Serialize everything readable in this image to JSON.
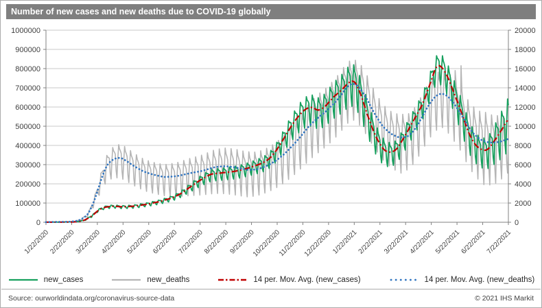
{
  "window": {
    "source": "Source: ourworldindata.org/coronavirus-source-data",
    "copyright": "© 2021 IHS Markit"
  },
  "chart_data": {
    "type": "line",
    "title": "Number of new cases and new deaths due to COVID-19 globally",
    "x_axis": {
      "total_days": 547,
      "tick_labels": [
        "1/22/2020",
        "2/22/2020",
        "3/22/2020",
        "4/22/2020",
        "5/22/2020",
        "6/22/2020",
        "7/22/2020",
        "8/22/2020",
        "9/22/2020",
        "10/22/2020",
        "11/22/2020",
        "12/22/2020",
        "1/22/2021",
        "2/22/2021",
        "3/22/2021",
        "4/22/2021",
        "5/22/2021",
        "6/22/2021",
        "7/22/2021"
      ]
    },
    "left_axis": {
      "min": 0,
      "max": 1000000,
      "step": 100000,
      "tick_labels": [
        "0",
        "100000",
        "200000",
        "300000",
        "400000",
        "500000",
        "600000",
        "700000",
        "800000",
        "900000",
        "1000000"
      ]
    },
    "right_axis": {
      "min": 0,
      "max": 20000,
      "step": 2000,
      "tick_labels": [
        "0",
        "2000",
        "4000",
        "6000",
        "8000",
        "10000",
        "12000",
        "14000",
        "16000",
        "18000",
        "20000"
      ]
    },
    "legend": [
      {
        "label": "new_cases",
        "color": "#17a05e",
        "style": "solid"
      },
      {
        "label": "new_deaths",
        "color": "#b5b5b5",
        "style": "solid"
      },
      {
        "label": "14 per. Mov. Avg. (new_cases)",
        "color": "#c00000",
        "style": "dash-dot"
      },
      {
        "label": "14 per. Mov. Avg. (new_deaths)",
        "color": "#2f74c0",
        "style": "dotted"
      }
    ],
    "weekly_period_days": 7,
    "series": {
      "ma_new_cases": {
        "axis": "left",
        "color": "#c00000",
        "style": "dash-dot",
        "width": 2.2,
        "anchors": [
          [
            0,
            400
          ],
          [
            20,
            600
          ],
          [
            35,
            1800
          ],
          [
            45,
            9000
          ],
          [
            55,
            34000
          ],
          [
            62,
            64000
          ],
          [
            70,
            79000
          ],
          [
            80,
            84000
          ],
          [
            91,
            80000
          ],
          [
            105,
            84000
          ],
          [
            120,
            94000
          ],
          [
            135,
            108000
          ],
          [
            150,
            128000
          ],
          [
            160,
            150000
          ],
          [
            170,
            182000
          ],
          [
            182,
            218000
          ],
          [
            195,
            251000
          ],
          [
            210,
            258000
          ],
          [
            225,
            266000
          ],
          [
            240,
            283000
          ],
          [
            255,
            306000
          ],
          [
            262,
            322000
          ],
          [
            270,
            357000
          ],
          [
            280,
            426000
          ],
          [
            290,
            500000
          ],
          [
            300,
            561000
          ],
          [
            308,
            593000
          ],
          [
            315,
            601000
          ],
          [
            322,
            579000
          ],
          [
            330,
            601000
          ],
          [
            340,
            652000
          ],
          [
            350,
            689000
          ],
          [
            358,
            729000
          ],
          [
            365,
            739000
          ],
          [
            372,
            673000
          ],
          [
            380,
            561000
          ],
          [
            390,
            445000
          ],
          [
            400,
            373000
          ],
          [
            408,
            362000
          ],
          [
            415,
            379000
          ],
          [
            425,
            452000
          ],
          [
            435,
            531000
          ],
          [
            445,
            609000
          ],
          [
            455,
            727000
          ],
          [
            462,
            821000
          ],
          [
            468,
            812000
          ],
          [
            475,
            761000
          ],
          [
            483,
            669000
          ],
          [
            490,
            591000
          ],
          [
            500,
            463000
          ],
          [
            508,
            401000
          ],
          [
            515,
            377000
          ],
          [
            522,
            373000
          ],
          [
            530,
            421000
          ],
          [
            538,
            473000
          ],
          [
            547,
            541000
          ]
        ]
      },
      "ma_new_deaths": {
        "axis": "right",
        "color": "#2f74c0",
        "style": "dotted",
        "width": 2.7,
        "anchors": [
          [
            0,
            15
          ],
          [
            30,
            60
          ],
          [
            40,
            200
          ],
          [
            50,
            800
          ],
          [
            58,
            2400
          ],
          [
            65,
            4400
          ],
          [
            72,
            6000
          ],
          [
            80,
            6600
          ],
          [
            88,
            6750
          ],
          [
            95,
            6400
          ],
          [
            105,
            5800
          ],
          [
            115,
            5300
          ],
          [
            125,
            5000
          ],
          [
            140,
            4700
          ],
          [
            155,
            4800
          ],
          [
            170,
            5100
          ],
          [
            185,
            5350
          ],
          [
            200,
            5750
          ],
          [
            212,
            5850
          ],
          [
            225,
            5700
          ],
          [
            238,
            5450
          ],
          [
            250,
            5500
          ],
          [
            262,
            5900
          ],
          [
            272,
            6400
          ],
          [
            282,
            7100
          ],
          [
            292,
            8000
          ],
          [
            302,
            9000
          ],
          [
            312,
            10100
          ],
          [
            322,
            10900
          ],
          [
            332,
            11600
          ],
          [
            340,
            12300
          ],
          [
            348,
            13100
          ],
          [
            356,
            14100
          ],
          [
            363,
            14500
          ],
          [
            370,
            14150
          ],
          [
            378,
            13100
          ],
          [
            388,
            11400
          ],
          [
            398,
            10000
          ],
          [
            408,
            9200
          ],
          [
            418,
            8800
          ],
          [
            428,
            8900
          ],
          [
            436,
            9600
          ],
          [
            444,
            10800
          ],
          [
            452,
            12100
          ],
          [
            460,
            13100
          ],
          [
            468,
            13450
          ],
          [
            476,
            13100
          ],
          [
            484,
            12200
          ],
          [
            492,
            11100
          ],
          [
            500,
            9900
          ],
          [
            508,
            9000
          ],
          [
            516,
            8500
          ],
          [
            524,
            8300
          ],
          [
            532,
            8300
          ],
          [
            540,
            8450
          ],
          [
            547,
            8700
          ]
        ]
      },
      "new_cases": {
        "axis": "left",
        "color": "#17a05e",
        "style": "solid",
        "width": 1.8,
        "base": "ma_new_cases",
        "weekly_phase": 0.6,
        "amplitude_anchors": [
          [
            0,
            0.5
          ],
          [
            40,
            0.35
          ],
          [
            60,
            0.12
          ],
          [
            90,
            0.12
          ],
          [
            150,
            0.13
          ],
          [
            182,
            0.15
          ],
          [
            240,
            0.15
          ],
          [
            300,
            0.16
          ],
          [
            330,
            0.17
          ],
          [
            365,
            0.18
          ],
          [
            400,
            0.22
          ],
          [
            430,
            0.16
          ],
          [
            462,
            0.11
          ],
          [
            480,
            0.14
          ],
          [
            500,
            0.22
          ],
          [
            520,
            0.26
          ],
          [
            535,
            0.3
          ],
          [
            547,
            0.32
          ]
        ],
        "spikes": []
      },
      "new_deaths": {
        "axis": "right",
        "color": "#b5b5b5",
        "style": "solid",
        "width": 1.6,
        "base": "ma_new_deaths",
        "weekly_phase": -1.2,
        "amplitude_anchors": [
          [
            0,
            0.3
          ],
          [
            55,
            0.25
          ],
          [
            80,
            0.3
          ],
          [
            120,
            0.38
          ],
          [
            160,
            0.45
          ],
          [
            200,
            0.48
          ],
          [
            240,
            0.52
          ],
          [
            270,
            0.45
          ],
          [
            300,
            0.38
          ],
          [
            330,
            0.32
          ],
          [
            363,
            0.26
          ],
          [
            390,
            0.32
          ],
          [
            420,
            0.42
          ],
          [
            450,
            0.3
          ],
          [
            468,
            0.26
          ],
          [
            490,
            0.34
          ],
          [
            505,
            0.45
          ],
          [
            520,
            0.55
          ],
          [
            535,
            0.5
          ],
          [
            547,
            0.4
          ]
        ],
        "spikes": [
          [
            484,
            15800
          ],
          [
            491,
            16300
          ]
        ]
      }
    },
    "plot": {
      "grid_on": true,
      "grid_color": "#c9c9c9",
      "axis_color": "#808080",
      "tick_text_color": "#404040",
      "legend_position": "bottom"
    }
  }
}
